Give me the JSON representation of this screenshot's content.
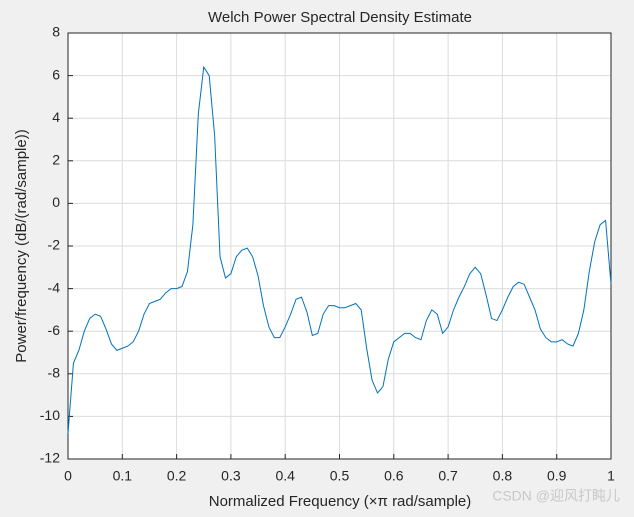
{
  "chart_data": {
    "type": "line",
    "title": "Welch Power Spectral Density Estimate",
    "x_label": "Normalized Frequency  (×π rad/sample)",
    "y_label": "Power/frequency (dB/(rad/sample))",
    "watermark": "CSDN @迎风打盹儿",
    "grid": true,
    "xlim": [
      0,
      1
    ],
    "ylim": [
      -12,
      8
    ],
    "xticks": [
      0,
      0.1,
      0.2,
      0.3,
      0.4,
      0.5,
      0.6,
      0.7,
      0.8,
      0.9,
      1
    ],
    "yticks": [
      -12,
      -10,
      -8,
      -6,
      -4,
      -2,
      0,
      2,
      4,
      6,
      8
    ],
    "x": [
      0,
      0.01,
      0.02,
      0.03,
      0.04,
      0.05,
      0.06,
      0.07,
      0.08,
      0.09,
      0.1,
      0.11,
      0.12,
      0.13,
      0.14,
      0.15,
      0.16,
      0.17,
      0.18,
      0.19,
      0.2,
      0.21,
      0.22,
      0.23,
      0.24,
      0.25,
      0.26,
      0.27,
      0.28,
      0.29,
      0.3,
      0.31,
      0.32,
      0.33,
      0.34,
      0.35,
      0.36,
      0.37,
      0.38,
      0.39,
      0.4,
      0.41,
      0.42,
      0.43,
      0.44,
      0.45,
      0.46,
      0.47,
      0.48,
      0.49,
      0.5,
      0.51,
      0.52,
      0.53,
      0.54,
      0.55,
      0.56,
      0.57,
      0.58,
      0.59,
      0.6,
      0.61,
      0.62,
      0.63,
      0.64,
      0.65,
      0.66,
      0.67,
      0.68,
      0.69,
      0.7,
      0.71,
      0.72,
      0.73,
      0.74,
      0.75,
      0.76,
      0.77,
      0.78,
      0.79,
      0.8,
      0.81,
      0.82,
      0.83,
      0.84,
      0.85,
      0.86,
      0.87,
      0.88,
      0.89,
      0.9,
      0.91,
      0.92,
      0.93,
      0.94,
      0.95,
      0.96,
      0.97,
      0.98,
      0.99,
      1
    ],
    "series": [
      {
        "color": "#0072bd",
        "values": [
          -10.8,
          -7.5,
          -6.9,
          -6.0,
          -5.4,
          -5.2,
          -5.3,
          -5.9,
          -6.6,
          -6.9,
          -6.8,
          -6.7,
          -6.5,
          -6.0,
          -5.2,
          -4.7,
          -4.6,
          -4.5,
          -4.2,
          -4.0,
          -4.0,
          -3.9,
          -3.2,
          -1.0,
          4.2,
          6.4,
          6.0,
          3.2,
          -2.5,
          -3.5,
          -3.3,
          -2.5,
          -2.2,
          -2.1,
          -2.5,
          -3.4,
          -4.8,
          -5.8,
          -6.3,
          -6.3,
          -5.8,
          -5.2,
          -4.5,
          -4.4,
          -5.1,
          -6.2,
          -6.1,
          -5.2,
          -4.8,
          -4.8,
          -4.9,
          -4.9,
          -4.8,
          -4.7,
          -5.0,
          -6.8,
          -8.3,
          -8.9,
          -8.6,
          -7.3,
          -6.5,
          -6.3,
          -6.1,
          -6.1,
          -6.3,
          -6.4,
          -5.5,
          -5.0,
          -5.2,
          -6.1,
          -5.8,
          -5.0,
          -4.4,
          -3.9,
          -3.3,
          -3.0,
          -3.3,
          -4.3,
          -5.4,
          -5.5,
          -5.0,
          -4.4,
          -3.9,
          -3.7,
          -3.8,
          -4.4,
          -5.0,
          -5.9,
          -6.3,
          -6.5,
          -6.5,
          -6.4,
          -6.6,
          -6.7,
          -6.1,
          -5.0,
          -3.2,
          -1.8,
          -1.0,
          -0.8,
          -3.8
        ]
      }
    ]
  }
}
